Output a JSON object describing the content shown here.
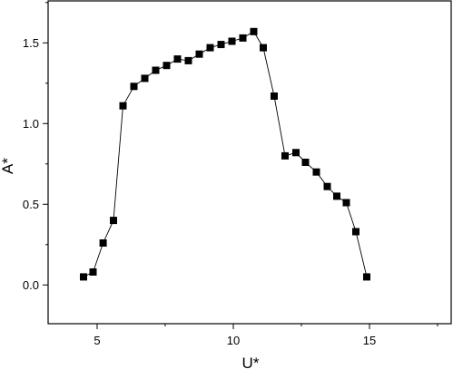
{
  "chart_data": {
    "type": "scatter",
    "xlabel": "U*",
    "ylabel": "A*",
    "xlim": [
      3.2,
      18.0
    ],
    "ylim": [
      -0.24,
      1.76
    ],
    "xticks": [
      5,
      10,
      15
    ],
    "xtick_labels": [
      "5",
      "10",
      "15"
    ],
    "yticks": [
      0.0,
      0.5,
      1.0,
      1.5
    ],
    "ytick_labels": [
      "0.0",
      "0.5",
      "1.0",
      "1.5"
    ],
    "grid": false,
    "legend": "none",
    "series": [
      {
        "marker": "square",
        "line": "solid",
        "color": "#000000",
        "x": [
          4.5,
          4.85,
          5.22,
          5.6,
          5.95,
          6.35,
          6.75,
          7.15,
          7.55,
          7.95,
          8.35,
          8.75,
          9.15,
          9.55,
          9.95,
          10.35,
          10.75,
          11.1,
          11.5,
          11.9,
          12.3,
          12.65,
          13.05,
          13.45,
          13.8,
          14.15,
          14.5,
          14.9
        ],
        "y": [
          0.05,
          0.08,
          0.26,
          0.4,
          1.11,
          1.23,
          1.28,
          1.33,
          1.36,
          1.4,
          1.39,
          1.43,
          1.47,
          1.49,
          1.51,
          1.53,
          1.57,
          1.47,
          1.17,
          0.8,
          0.82,
          0.76,
          0.7,
          0.61,
          0.55,
          0.51,
          0.33,
          0.05
        ]
      }
    ]
  }
}
